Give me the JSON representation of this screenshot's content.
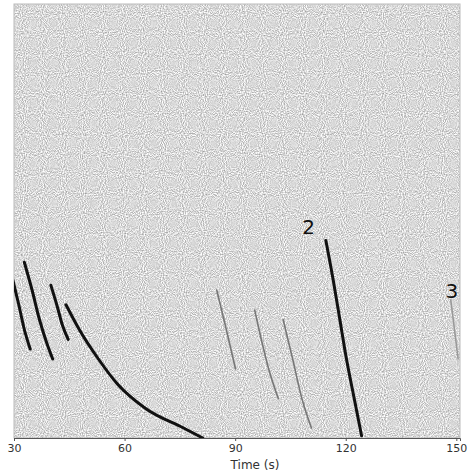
{
  "chart_data": {
    "type": "line",
    "x_label": "Time (s)",
    "xlim": [
      30,
      151
    ],
    "xticks": [
      30,
      60,
      90,
      120,
      150
    ],
    "ylim": [
      0,
      100
    ],
    "tick_labels": "x",
    "grid": false,
    "series": [
      {
        "color": "#111111",
        "x": [
          29.7,
          31.3,
          32.8,
          34.4
        ],
        "values": [
          36.4,
          30.7,
          25.0,
          20.5
        ]
      },
      {
        "color": "#111111",
        "x": [
          32.8,
          34.9,
          36.9,
          39.0,
          40.5
        ],
        "values": [
          40.5,
          34.1,
          27.3,
          21.6,
          18.2
        ]
      },
      {
        "color": "#111111",
        "x": [
          40.0,
          41.6,
          43.1,
          44.7
        ],
        "values": [
          35.2,
          30.7,
          26.1,
          22.7
        ]
      },
      {
        "color": "#111111",
        "x": [
          44.1,
          47.7,
          52.9,
          58.0,
          65.7,
          76.0,
          81.2
        ],
        "values": [
          30.7,
          25.0,
          18.2,
          12.5,
          6.8,
          2.3,
          0
        ]
      },
      {
        "color": "#777777",
        "x": [
          85.0,
          87.6,
          90.1
        ],
        "values": [
          34.1,
          25.0,
          15.9
        ]
      },
      {
        "color": "#777777",
        "x": [
          95.3,
          97.1,
          99.1,
          101.7
        ],
        "values": [
          29.5,
          22.7,
          15.9,
          9.1
        ]
      },
      {
        "color": "#777777",
        "x": [
          103.0,
          105.6,
          108.1,
          110.7
        ],
        "values": [
          27.3,
          18.2,
          9.1,
          2.3
        ]
      },
      {
        "color": "#111111",
        "x": [
          114.6,
          116.6,
          118.4,
          120.2,
          122.3,
          124.3
        ],
        "values": [
          45.5,
          36.4,
          27.3,
          18.2,
          9.1,
          0.5
        ]
      },
      {
        "color": "#999999",
        "x": [
          148.5,
          149.5,
          150.5
        ],
        "values": [
          31.8,
          25.0,
          18.2
        ]
      }
    ],
    "annotations": [
      {
        "text": "2",
        "x": 109.9,
        "y": 48.2
      },
      {
        "text": "3",
        "x": 148.8,
        "y": 33.6
      }
    ]
  }
}
